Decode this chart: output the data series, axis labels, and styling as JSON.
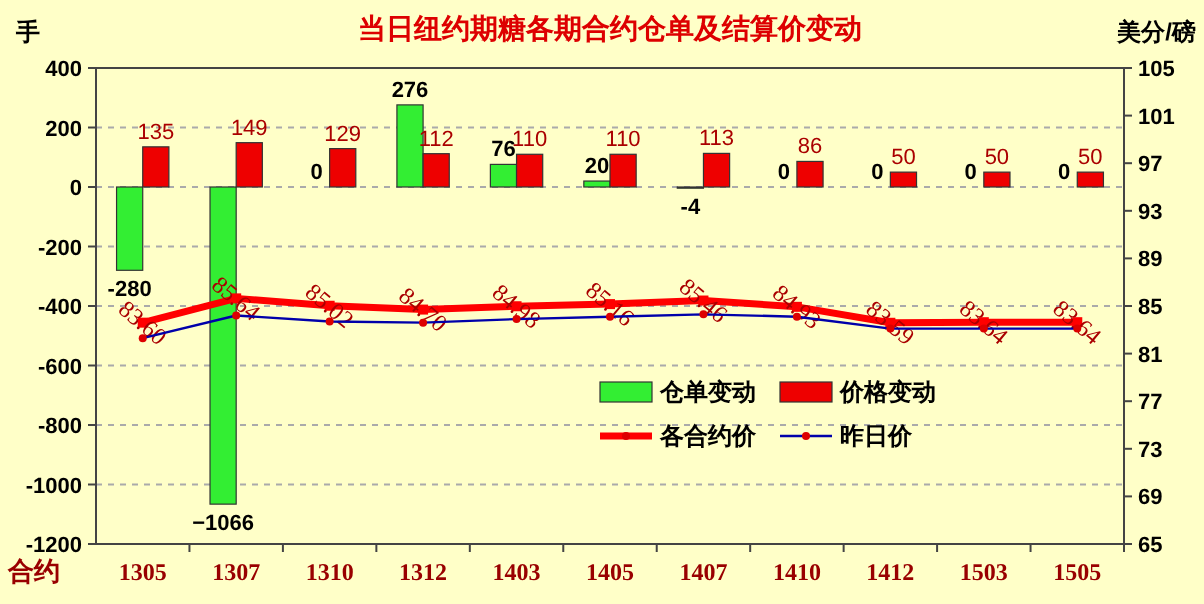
{
  "chart_data": {
    "type": "bar",
    "title": "当日纽约期糖各期合约仓单及结算价变动",
    "ylabel": "手",
    "y2label": "美分/磅",
    "xlabel": "合约",
    "categories": [
      "1305",
      "1307",
      "1310",
      "1312",
      "1403",
      "1405",
      "1407",
      "1410",
      "1412",
      "1503",
      "1505"
    ],
    "series": [
      {
        "name": "仓单变动",
        "color": "#33ee33",
        "values": [
          -280,
          -1066,
          0,
          276,
          76,
          20,
          -4,
          0,
          0,
          0,
          0
        ],
        "value_labels": [
          "-280",
          "−1066",
          "0",
          "276",
          "76",
          "20",
          "-4",
          "0",
          "0",
          "0",
          "0"
        ]
      },
      {
        "name": "价格变动",
        "color": "#ee0000",
        "values": [
          135,
          149,
          129,
          112,
          110,
          110,
          113,
          86,
          50,
          50,
          50
        ],
        "value_labels": [
          "135",
          "149",
          "129",
          "112",
          "110",
          "110",
          "113",
          "86",
          "50",
          "50",
          "50"
        ]
      },
      {
        "name": "各合约价",
        "type": "line",
        "axis": "y2",
        "color": "#ff0000",
        "marker": "square",
        "values": [
          83.6,
          85.64,
          85.02,
          84.7,
          84.98,
          85.16,
          85.46,
          84.93,
          83.59,
          83.64,
          83.64
        ],
        "value_labels": [
          "83.60",
          "85.64",
          "85.02",
          "84.70",
          "84.98",
          "85.16",
          "85.46",
          "84.93",
          "83.59",
          "83.64",
          "83.64"
        ]
      },
      {
        "name": "昨日价",
        "type": "line",
        "axis": "y2",
        "color": "#0000aa",
        "marker": "circle",
        "values": [
          82.3,
          84.2,
          83.7,
          83.6,
          83.9,
          84.1,
          84.3,
          84.1,
          83.1,
          83.1,
          83.1
        ]
      }
    ],
    "ylim": [
      -1200,
      400
    ],
    "yticks": [
      -1200,
      -1000,
      -800,
      -600,
      -400,
      -200,
      0,
      200,
      400
    ],
    "y2lim": [
      65,
      105
    ],
    "y2ticks": [
      65,
      69,
      73,
      77,
      81,
      85,
      89,
      93,
      97,
      101,
      105
    ],
    "grid": "y",
    "legend": "bottom right"
  }
}
